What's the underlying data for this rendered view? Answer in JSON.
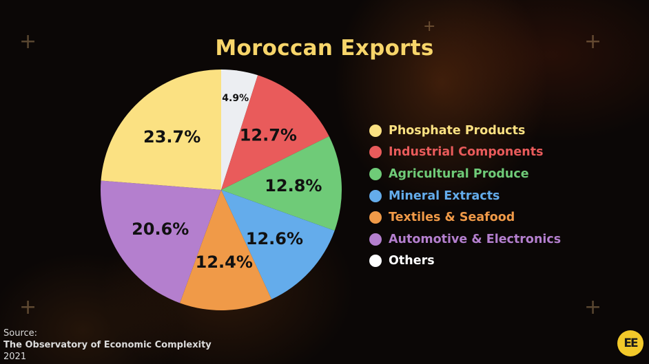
{
  "title": "Moroccan Exports",
  "chart_data": {
    "type": "pie",
    "title": "Moroccan Exports",
    "start_angle_deg": 0,
    "direction": "clockwise",
    "slices": [
      {
        "label": "Others",
        "value": 4.9,
        "value_label": "4.9%",
        "color": "#eceef2"
      },
      {
        "label": "Industrial Components",
        "value": 12.7,
        "value_label": "12.7%",
        "color": "#e95b5b"
      },
      {
        "label": "Agricultural Produce",
        "value": 12.8,
        "value_label": "12.8%",
        "color": "#6fcb78"
      },
      {
        "label": "Mineral Extracts",
        "value": 12.6,
        "value_label": "12.6%",
        "color": "#64aceb"
      },
      {
        "label": "Textiles & Seafood",
        "value": 12.4,
        "value_label": "12.4%",
        "color": "#f09a48"
      },
      {
        "label": "Automotive & Electronics",
        "value": 20.6,
        "value_label": "20.6%",
        "color": "#b47fce"
      },
      {
        "label": "Phosphate Products",
        "value": 23.7,
        "value_label": "23.7%",
        "color": "#fbe182"
      }
    ],
    "legend_placement": "right"
  },
  "legend": [
    {
      "label": "Phosphate Products",
      "color": "#fbe182",
      "text_color": "#fbe182"
    },
    {
      "label": "Industrial Components",
      "color": "#e95b5b",
      "text_color": "#e95b5b"
    },
    {
      "label": "Agricultural Produce",
      "color": "#6fcb78",
      "text_color": "#6fcb78"
    },
    {
      "label": "Mineral Extracts",
      "color": "#64aceb",
      "text_color": "#64aceb"
    },
    {
      "label": "Textiles & Seafood",
      "color": "#f09a48",
      "text_color": "#f09a48"
    },
    {
      "label": "Automotive & Electronics",
      "color": "#b47fce",
      "text_color": "#b47fce"
    },
    {
      "label": "Others",
      "color": "#ffffff",
      "text_color": "#ffffff"
    }
  ],
  "source": {
    "prefix": "Source:",
    "name": "The Observatory of Economic Complexity",
    "year": "2021"
  },
  "logo": {
    "text": "EE"
  },
  "decorations": [
    "plus-icon",
    "plus-icon",
    "plus-icon",
    "plus-icon",
    "plus-icon"
  ]
}
